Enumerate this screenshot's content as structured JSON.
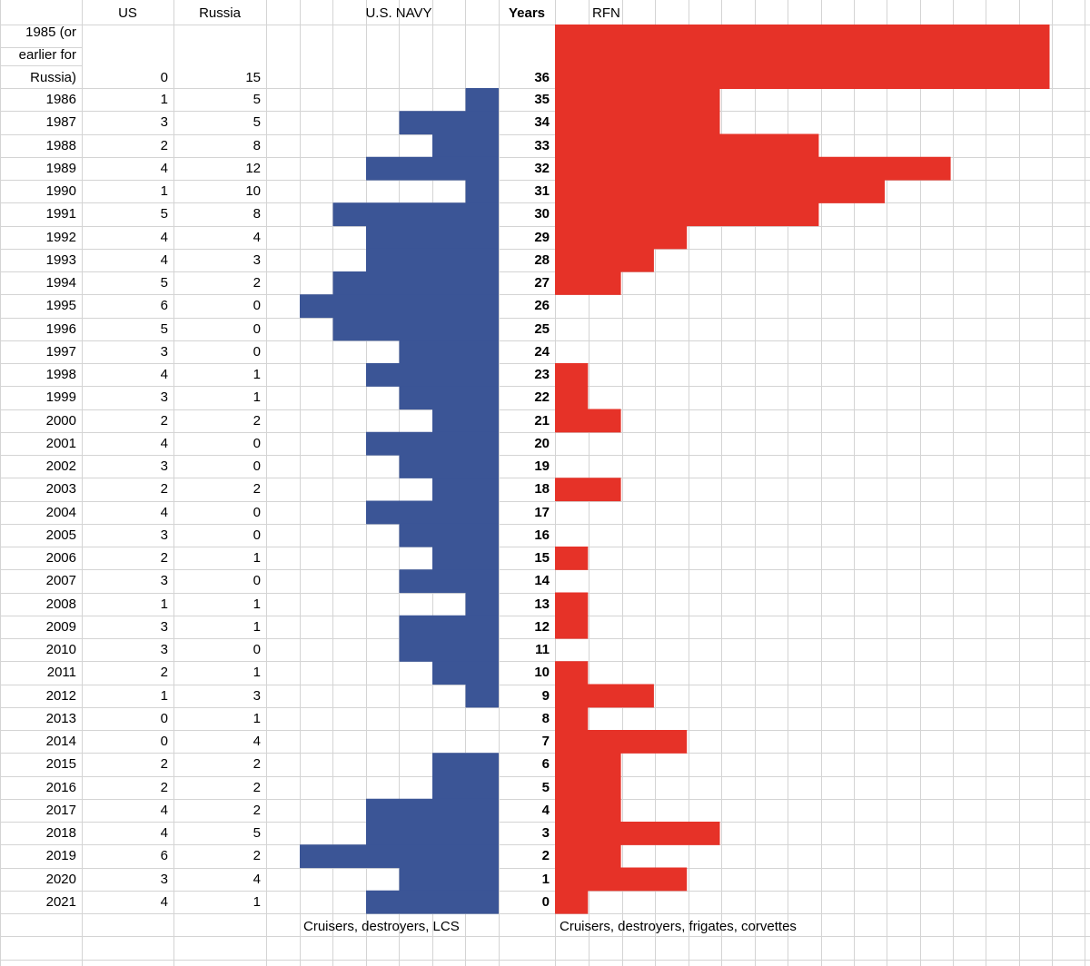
{
  "headers": {
    "us": "US",
    "russia": "Russia",
    "usnavy": "U.S. NAVY",
    "years": "Years",
    "rfn": "RFN"
  },
  "first_label_lines": [
    "1985 (or",
    "earlier for",
    "Russia)"
  ],
  "footnotes": {
    "usnavy": "Cruisers, destroyers, LCS",
    "rfn": "Cruisers, destroyers, frigates, corvettes"
  },
  "colors": {
    "us_bar": "#3b5596",
    "rfn_bar": "#e63228",
    "grid": "#d4d4d4"
  },
  "chart_data": {
    "type": "bar",
    "categories": [
      "1985 (or earlier for Russia)",
      "1986",
      "1987",
      "1988",
      "1989",
      "1990",
      "1991",
      "1992",
      "1993",
      "1994",
      "1995",
      "1996",
      "1997",
      "1998",
      "1999",
      "2000",
      "2001",
      "2002",
      "2003",
      "2004",
      "2005",
      "2006",
      "2007",
      "2008",
      "2009",
      "2010",
      "2011",
      "2012",
      "2013",
      "2014",
      "2015",
      "2016",
      "2017",
      "2018",
      "2019",
      "2020",
      "2021"
    ],
    "series": [
      {
        "name": "US",
        "values": [
          0,
          1,
          3,
          2,
          4,
          1,
          5,
          4,
          4,
          5,
          6,
          5,
          3,
          4,
          3,
          2,
          4,
          3,
          2,
          4,
          3,
          2,
          3,
          1,
          3,
          3,
          2,
          1,
          0,
          0,
          2,
          2,
          4,
          4,
          6,
          3,
          4
        ]
      },
      {
        "name": "Russia",
        "values": [
          15,
          5,
          5,
          8,
          12,
          10,
          8,
          4,
          3,
          2,
          0,
          0,
          0,
          1,
          1,
          2,
          0,
          0,
          2,
          0,
          0,
          1,
          0,
          1,
          1,
          0,
          1,
          3,
          1,
          4,
          2,
          2,
          2,
          5,
          2,
          4,
          1
        ]
      }
    ],
    "years": [
      36,
      35,
      34,
      33,
      32,
      31,
      30,
      29,
      28,
      27,
      26,
      25,
      24,
      23,
      22,
      21,
      20,
      19,
      18,
      17,
      16,
      15,
      14,
      13,
      12,
      11,
      10,
      9,
      8,
      7,
      6,
      5,
      4,
      3,
      2,
      1,
      0
    ]
  }
}
